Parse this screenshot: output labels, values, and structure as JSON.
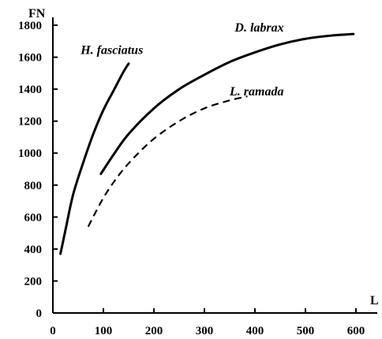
{
  "chart_data": {
    "type": "line",
    "xlabel": "L",
    "ylabel": "FN",
    "xlim": [
      0,
      650
    ],
    "ylim": [
      0,
      1800
    ],
    "xticks": [
      0,
      100,
      200,
      300,
      400,
      500,
      600
    ],
    "yticks": [
      0,
      200,
      400,
      600,
      800,
      1000,
      1200,
      1400,
      1600,
      1800
    ],
    "grid": false,
    "legend": "none",
    "series": [
      {
        "name": "H. fasciatus",
        "style": "solid",
        "x": [
          15,
          25,
          40,
          60,
          80,
          100,
          120,
          140,
          150
        ],
        "y": [
          370,
          520,
          740,
          940,
          1120,
          1270,
          1390,
          1510,
          1560
        ]
      },
      {
        "name": "D. labrax",
        "style": "solid",
        "x": [
          95,
          120,
          150,
          200,
          250,
          300,
          350,
          400,
          450,
          500,
          550,
          595
        ],
        "y": [
          870,
          990,
          1120,
          1280,
          1400,
          1490,
          1570,
          1630,
          1680,
          1715,
          1735,
          1745
        ]
      },
      {
        "name": "L. ramada",
        "style": "dashed",
        "x": [
          70,
          100,
          130,
          160,
          200,
          250,
          300,
          350,
          385
        ],
        "y": [
          540,
          720,
          860,
          970,
          1090,
          1200,
          1280,
          1330,
          1355
        ]
      }
    ],
    "label_anchor_points": {
      "H. fasciatus": [
        55,
        1620
      ],
      "D. labrax": [
        360,
        1760
      ],
      "L. ramada": [
        350,
        1360
      ]
    }
  }
}
